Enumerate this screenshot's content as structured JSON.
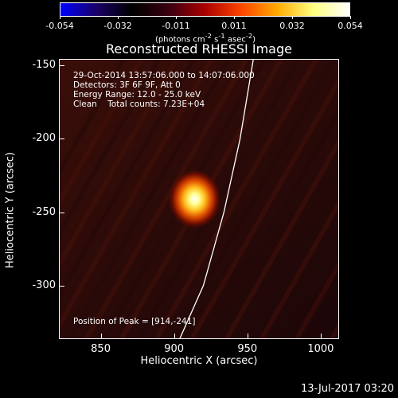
{
  "colorbar": {
    "ticks": [
      "-0.054",
      "-0.032",
      "-0.011",
      "0.011",
      "0.032",
      "0.054"
    ],
    "units_prefix": "(photons cm",
    "units_mid": " s",
    "units_mid2": " asec",
    "units_suffix": ")",
    "exp_a": "-2",
    "exp_b": "-1",
    "exp_c": "-2",
    "colors": [
      "#0000ff",
      "#1a0066",
      "#000000",
      "#3a0010",
      "#aa0000",
      "#ff4400",
      "#ffaa00",
      "#ffff80",
      "#ffffff"
    ]
  },
  "title": "Reconstructed RHESSI Image",
  "info": {
    "line1": "29-Oct-2014 13:57:06.000 to 14:07:06.000",
    "line2": "Detectors: 3F 6F 9F, Att 0",
    "line3": "Energy Range: 12.0 - 25.0 keV",
    "line4": "Clean    Total counts: 7.23E+04",
    "peak": "Position of Peak = [914,-241]"
  },
  "axes": {
    "xlabel": "Heliocentric X (arcsec)",
    "ylabel": "Heliocentric Y (arcsec)",
    "xticks": [
      "850",
      "900",
      "950",
      "1000"
    ],
    "yticks": [
      "-150",
      "-200",
      "-250",
      "-300"
    ]
  },
  "chart_data": {
    "type": "heatmap",
    "title": "Reconstructed RHESSI Image",
    "xlabel": "Heliocentric X (arcsec)",
    "ylabel": "Heliocentric Y (arcsec)",
    "xlim": [
      822,
      1012
    ],
    "ylim": [
      -336,
      -146
    ],
    "xticks": [
      850,
      900,
      950,
      1000
    ],
    "yticks": [
      -150,
      -200,
      -250,
      -300
    ],
    "color_range": [
      -0.054,
      0.054
    ],
    "peak": {
      "x": 914,
      "y": -241
    },
    "limb_curve": [
      {
        "x": 954,
        "y": -146
      },
      {
        "x": 945,
        "y": -200
      },
      {
        "x": 934,
        "y": -250
      },
      {
        "x": 920,
        "y": -300
      },
      {
        "x": 904,
        "y": -336
      }
    ]
  },
  "footer": "13-Jul-2017 03:20"
}
